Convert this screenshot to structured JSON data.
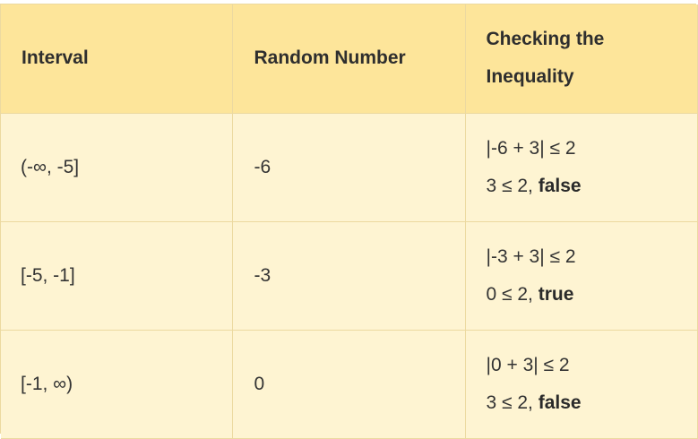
{
  "table": {
    "headers": [
      "Interval",
      "Random Number",
      "Checking the Inequality"
    ],
    "header_lines": {
      "col3_line1": "Checking the",
      "col3_line2": "Inequality"
    },
    "rows": [
      {
        "interval": "(-∞, -5]",
        "random_number": "-6",
        "check_line1": "|-6 + 3| ≤ 2",
        "check_line2_prefix": "3 ≤ 2, ",
        "check_line2_result": "false"
      },
      {
        "interval": "[-5, -1]",
        "random_number": "-3",
        "check_line1": "|-3 + 3| ≤ 2",
        "check_line2_prefix": "0 ≤ 2, ",
        "check_line2_result": "true"
      },
      {
        "interval": "[-1, ∞)",
        "random_number": "0",
        "check_line1": "|0 + 3| ≤ 2",
        "check_line2_prefix": "3 ≤ 2, ",
        "check_line2_result": "false"
      }
    ]
  },
  "colors": {
    "header_bg": "#fde59a",
    "row_bg": "#fef4d2",
    "border": "#ecd9a0"
  }
}
